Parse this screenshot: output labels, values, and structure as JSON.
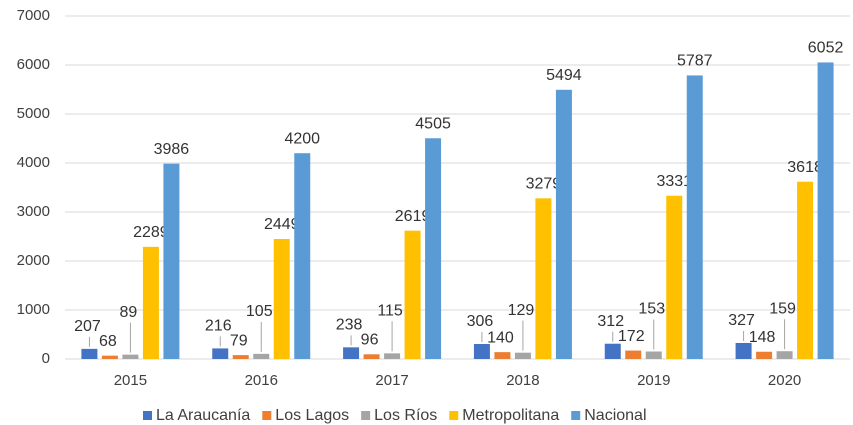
{
  "chart_data": {
    "type": "bar",
    "categories": [
      "2015",
      "2016",
      "2017",
      "2018",
      "2019",
      "2020"
    ],
    "series": [
      {
        "name": "La Araucanía",
        "color": "#4472c4",
        "values": [
          207,
          216,
          238,
          306,
          312,
          327
        ]
      },
      {
        "name": "Los Lagos",
        "color": "#ed7d31",
        "values": [
          68,
          79,
          96,
          140,
          172,
          148
        ]
      },
      {
        "name": "Los Ríos",
        "color": "#a5a5a5",
        "values": [
          89,
          105,
          115,
          129,
          153,
          159
        ]
      },
      {
        "name": "Metropolitana",
        "color": "#ffc000",
        "values": [
          2289,
          2449,
          2619,
          3279,
          3331,
          3618
        ]
      },
      {
        "name": "Nacional",
        "color": "#5b9bd5",
        "values": [
          3986,
          4200,
          4505,
          5494,
          5787,
          6052
        ]
      }
    ],
    "ylim": [
      0,
      7000
    ],
    "yticks": [
      0,
      1000,
      2000,
      3000,
      4000,
      5000,
      6000,
      7000
    ],
    "grid": true,
    "legend": "bottom"
  }
}
